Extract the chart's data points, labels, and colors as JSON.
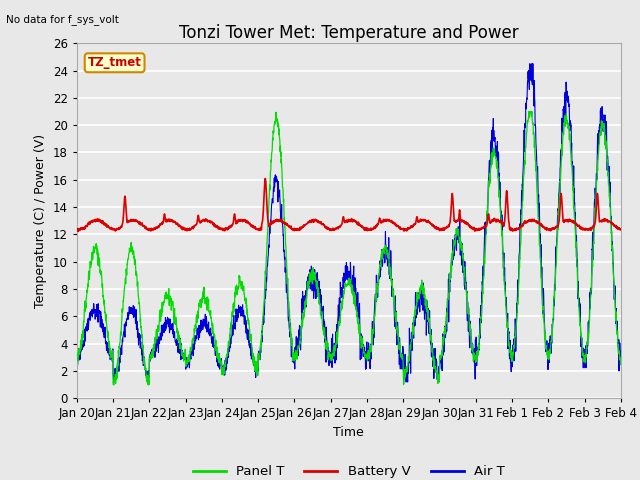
{
  "title": "Tonzi Tower Met: Temperature and Power",
  "no_data_label": "No data for f_sys_volt",
  "annotation_label": "TZ_tmet",
  "xlabel": "Time",
  "ylabel": "Temperature (C) / Power (V)",
  "ylim": [
    0,
    26
  ],
  "yticks": [
    0,
    2,
    4,
    6,
    8,
    10,
    12,
    14,
    16,
    18,
    20,
    22,
    24,
    26
  ],
  "xtick_labels": [
    "Jan 20",
    "Jan 21",
    "Jan 22",
    "Jan 23",
    "Jan 24",
    "Jan 25",
    "Jan 26",
    "Jan 27",
    "Jan 28",
    "Jan 29",
    "Jan 30",
    "Jan 31",
    "Feb 1",
    "Feb 2",
    "Feb 3",
    "Feb 4"
  ],
  "panel_color": "#00dd00",
  "battery_color": "#dd0000",
  "air_color": "#0000dd",
  "background_color": "#e8e8e8",
  "grid_color": "#ffffff",
  "title_fontsize": 12,
  "axis_fontsize": 9,
  "tick_fontsize": 8.5
}
